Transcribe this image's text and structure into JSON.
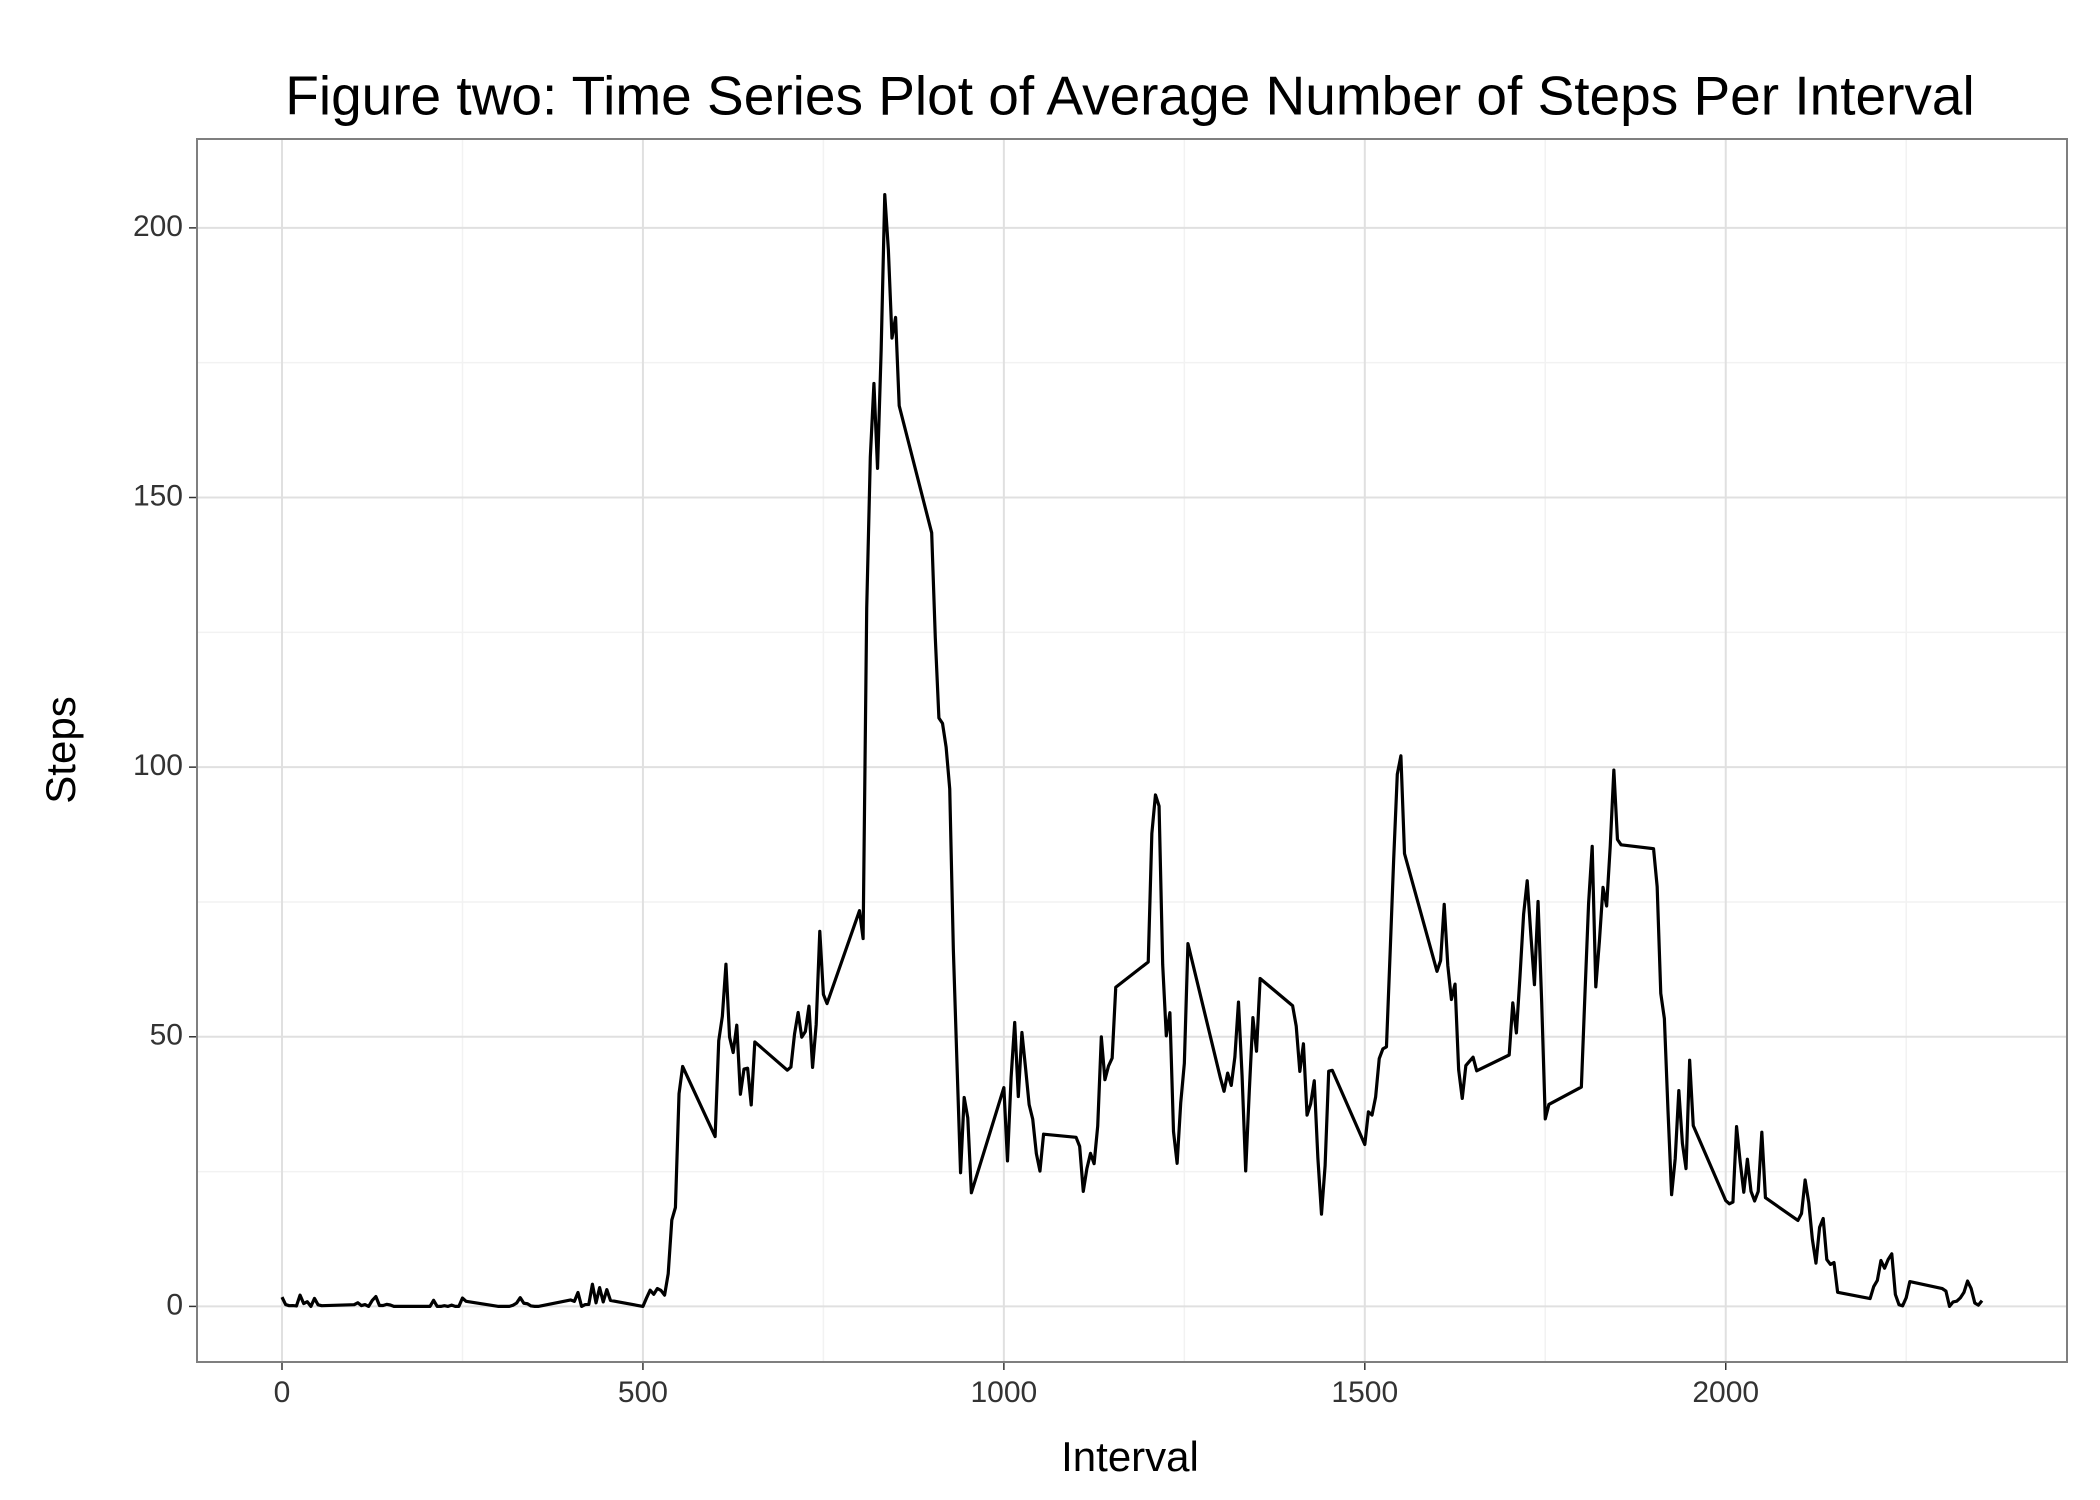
{
  "chart_data": {
    "type": "line",
    "title": "Figure two: Time Series Plot of Average Number of Steps Per Interval",
    "xlabel": "Interval",
    "ylabel": "Steps",
    "x": [
      0,
      5,
      10,
      15,
      20,
      25,
      30,
      35,
      40,
      45,
      50,
      55,
      100,
      105,
      110,
      115,
      120,
      125,
      130,
      135,
      140,
      145,
      150,
      155,
      200,
      205,
      210,
      215,
      220,
      225,
      230,
      235,
      240,
      245,
      250,
      255,
      300,
      305,
      310,
      315,
      320,
      325,
      330,
      335,
      340,
      345,
      350,
      355,
      400,
      405,
      410,
      415,
      420,
      425,
      430,
      435,
      440,
      445,
      450,
      455,
      500,
      505,
      510,
      515,
      520,
      525,
      530,
      535,
      540,
      545,
      550,
      555,
      600,
      605,
      610,
      615,
      620,
      625,
      630,
      635,
      640,
      645,
      650,
      655,
      700,
      705,
      710,
      715,
      720,
      725,
      730,
      735,
      740,
      745,
      750,
      755,
      800,
      805,
      810,
      815,
      820,
      825,
      830,
      835,
      840,
      845,
      850,
      855,
      900,
      905,
      910,
      915,
      920,
      925,
      930,
      935,
      940,
      945,
      950,
      955,
      1000,
      1005,
      1010,
      1015,
      1020,
      1025,
      1030,
      1035,
      1040,
      1045,
      1050,
      1055,
      1100,
      1105,
      1110,
      1115,
      1120,
      1125,
      1130,
      1135,
      1140,
      1145,
      1150,
      1155,
      1200,
      1205,
      1210,
      1215,
      1220,
      1225,
      1230,
      1235,
      1240,
      1245,
      1250,
      1255,
      1300,
      1305,
      1310,
      1315,
      1320,
      1325,
      1330,
      1335,
      1340,
      1345,
      1350,
      1355,
      1400,
      1405,
      1410,
      1415,
      1420,
      1425,
      1430,
      1435,
      1440,
      1445,
      1450,
      1455,
      1500,
      1505,
      1510,
      1515,
      1520,
      1525,
      1530,
      1535,
      1540,
      1545,
      1550,
      1555,
      1600,
      1605,
      1610,
      1615,
      1620,
      1625,
      1630,
      1635,
      1640,
      1645,
      1650,
      1655,
      1700,
      1705,
      1710,
      1715,
      1720,
      1725,
      1730,
      1735,
      1740,
      1745,
      1750,
      1755,
      1800,
      1805,
      1810,
      1815,
      1820,
      1825,
      1830,
      1835,
      1840,
      1845,
      1850,
      1855,
      1900,
      1905,
      1910,
      1915,
      1920,
      1925,
      1930,
      1935,
      1940,
      1945,
      1950,
      1955,
      2000,
      2005,
      2010,
      2015,
      2020,
      2025,
      2030,
      2035,
      2040,
      2045,
      2050,
      2055,
      2100,
      2105,
      2110,
      2115,
      2120,
      2125,
      2130,
      2135,
      2140,
      2145,
      2150,
      2155,
      2200,
      2205,
      2210,
      2215,
      2220,
      2225,
      2230,
      2235,
      2240,
      2245,
      2250,
      2255,
      2300,
      2305,
      2310,
      2315,
      2320,
      2325,
      2330,
      2335,
      2340,
      2345,
      2350,
      2355
    ],
    "series": [
      {
        "name": "Steps",
        "color": "#000000",
        "values": [
          1.72,
          0.34,
          0.13,
          0.15,
          0.08,
          2.09,
          0.53,
          0.87,
          0,
          1.47,
          0.3,
          0.13,
          0.32,
          0.68,
          0.15,
          0.34,
          0,
          1.11,
          1.83,
          0.17,
          0.17,
          0.38,
          0.26,
          0,
          0,
          0,
          1.13,
          0,
          0,
          0.13,
          0,
          0.23,
          0,
          0,
          1.55,
          0.94,
          0,
          0,
          0,
          0,
          0.21,
          0.62,
          1.62,
          0.58,
          0.49,
          0.08,
          0,
          0,
          1.19,
          0.94,
          2.57,
          0,
          0.34,
          0.36,
          4.11,
          0.66,
          3.49,
          0.83,
          3.11,
          1.11,
          0,
          1.57,
          3,
          2.25,
          3.32,
          2.96,
          2.09,
          6.06,
          16.02,
          18.34,
          39.45,
          44.49,
          31.49,
          49.26,
          53.77,
          63.45,
          49.96,
          47.08,
          52.15,
          39.34,
          44.02,
          44.17,
          37.36,
          49.04,
          43.81,
          44.38,
          50.51,
          54.51,
          49.92,
          50.98,
          55.68,
          44.32,
          52.26,
          69.55,
          57.85,
          56.15,
          73.38,
          68.21,
          129.43,
          157.53,
          171.15,
          155.4,
          177.3,
          206.17,
          195.92,
          179.57,
          183.4,
          167.02,
          143.45,
          124.04,
          109.11,
          108.11,
          103.72,
          95.96,
          66.21,
          45.23,
          24.79,
          38.75,
          34.98,
          21.06,
          40.57,
          26.98,
          42.42,
          52.66,
          38.92,
          50.79,
          44.28,
          37.42,
          34.7,
          28.34,
          25.09,
          31.94,
          31.36,
          29.68,
          21.32,
          25.55,
          28.38,
          26.47,
          33.43,
          49.98,
          42.04,
          44.6,
          46.04,
          59.19,
          63.87,
          87.7,
          94.85,
          92.77,
          63.4,
          50.17,
          54.47,
          32.42,
          26.53,
          37.74,
          45.06,
          67.28,
          42.34,
          39.89,
          43.26,
          40.98,
          46.25,
          56.43,
          42.75,
          25.13,
          39.96,
          53.55,
          47.32,
          60.81,
          55.75,
          51.96,
          43.58,
          48.7,
          35.47,
          37.55,
          41.85,
          27.51,
          17.11,
          26.08,
          43.62,
          43.77,
          30.02,
          36.08,
          35.49,
          38.85,
          45.96,
          47.75,
          48.13,
          65.32,
          82.91,
          98.66,
          102.11,
          83.96,
          62.13,
          64.13,
          74.55,
          63.17,
          56.91,
          59.77,
          43.87,
          38.57,
          44.66,
          45.45,
          46.21,
          43.68,
          46.62,
          56.3,
          50.72,
          61.23,
          72.72,
          78.94,
          68.94,
          59.66,
          75.09,
          56.51,
          34.77,
          37.45,
          40.68,
          58.02,
          74.7,
          85.32,
          59.26,
          67.77,
          77.7,
          74.25,
          85.34,
          99.45,
          86.58,
          85.6,
          84.87,
          77.83,
          58.04,
          53.36,
          36.32,
          20.72,
          27.4,
          40.02,
          30.21,
          25.55,
          45.66,
          33.53,
          19.62,
          19.02,
          19.34,
          33.34,
          26.81,
          21.17,
          27.3,
          21.34,
          19.55,
          21.32,
          32.3,
          20.15,
          15.94,
          17.23,
          23.45,
          19.25,
          12.45,
          8.02,
          14.66,
          16.3,
          8.68,
          7.79,
          8.13,
          2.62,
          1.45,
          3.68,
          4.81,
          8.51,
          7.08,
          8.7,
          9.75,
          2.21,
          0.32,
          0.11,
          1.6,
          4.6,
          3.3,
          2.85,
          0,
          0.83,
          0.96,
          1.58,
          2.6,
          4.7,
          3.3,
          0.64,
          0.23,
          1.08
        ]
      }
    ],
    "xlim": [
      -117.75,
      2472.75
    ],
    "xticks": [
      0,
      500,
      1000,
      1500,
      2000
    ],
    "xminor_ticks": [
      250,
      750,
      1250,
      1750,
      2250
    ],
    "ylim": [
      -10.31,
      216.48
    ],
    "yticks": [
      0,
      50,
      100,
      150,
      200
    ],
    "yminor_ticks": [
      25,
      75,
      125,
      175
    ],
    "grid": true
  }
}
